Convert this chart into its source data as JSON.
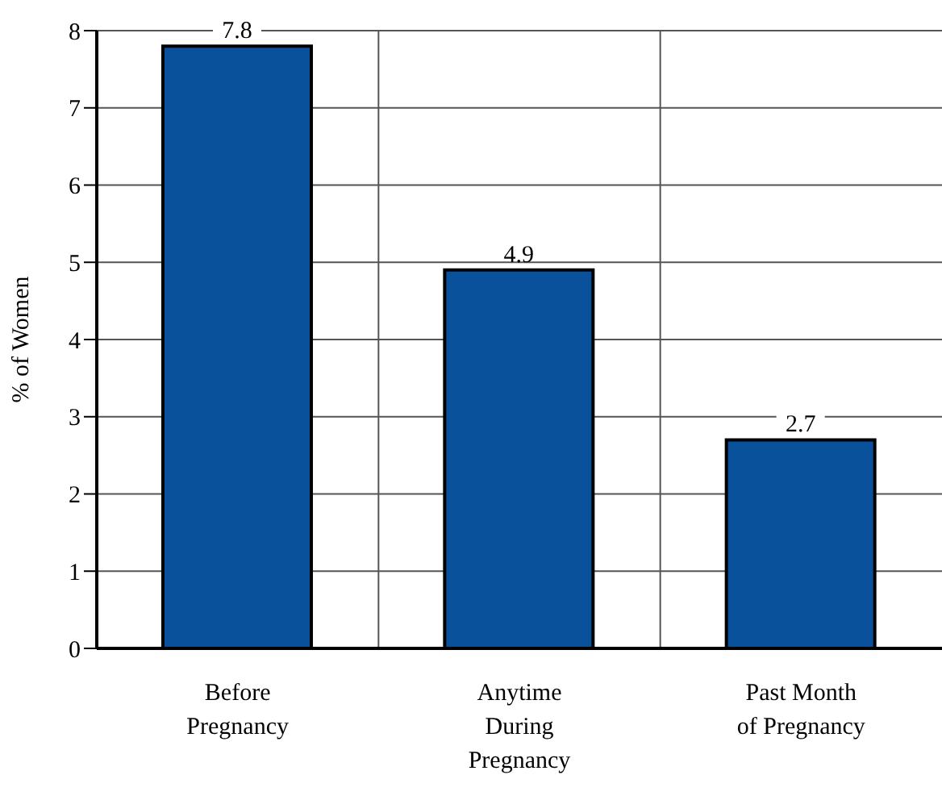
{
  "chart_data": {
    "type": "bar",
    "categories": [
      "Before Pregnancy",
      "Anytime During Pregnancy",
      "Past Month of Pregnancy"
    ],
    "values": [
      7.8,
      4.9,
      2.7
    ],
    "color": "#0a519c",
    "ylabel": "% of Women",
    "ylim": [
      0,
      8
    ],
    "yticks": [
      0,
      1,
      2,
      3,
      4,
      5,
      6,
      7,
      8
    ],
    "grid": true,
    "data_labels": true
  }
}
